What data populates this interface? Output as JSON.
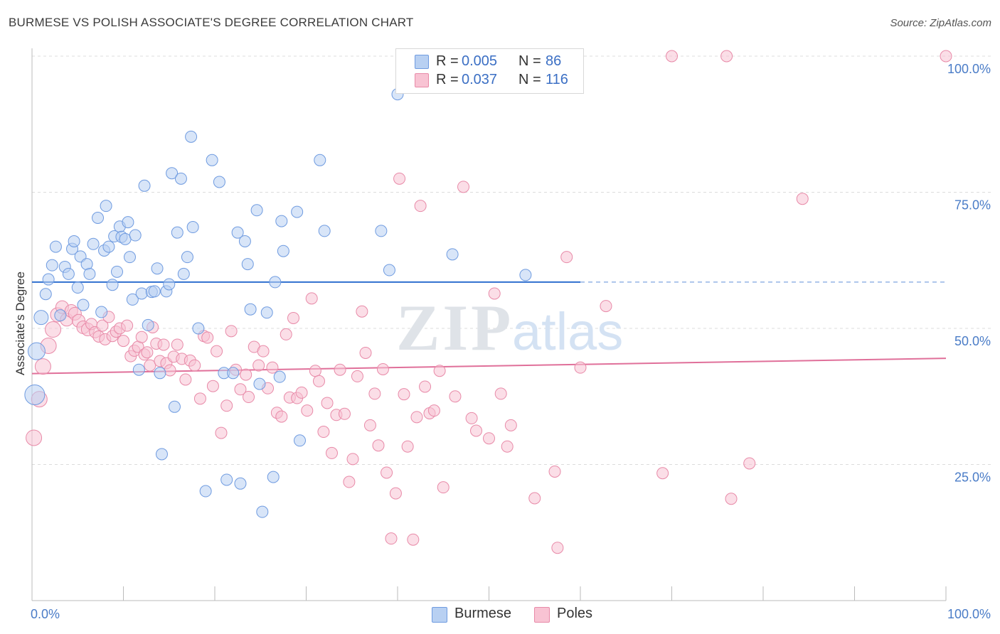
{
  "header": {
    "title": "BURMESE VS POLISH ASSOCIATE'S DEGREE CORRELATION CHART",
    "source": "Source: ZipAtlas.com"
  },
  "legend": {
    "series": [
      {
        "swatch_fill": "#b8d0f2",
        "swatch_stroke": "#6f9be0",
        "r_label": "R =",
        "r_value": "0.005",
        "n_label": "N =",
        "n_value": "86"
      },
      {
        "swatch_fill": "#f8c3d3",
        "swatch_stroke": "#e88aa8",
        "r_label": "R =",
        "r_value": "0.037",
        "n_label": "N =",
        "n_value": "116"
      }
    ]
  },
  "bottom_legend": [
    {
      "label": "Burmese",
      "color": "#b8d0f2"
    },
    {
      "label": "Poles",
      "color": "#f8c3d3"
    }
  ],
  "watermark": {
    "zip": "ZIP",
    "atlas": "atlas"
  },
  "chart_data": {
    "type": "scatter",
    "title": "BURMESE VS POLISH ASSOCIATE'S DEGREE CORRELATION CHART",
    "xlabel": "",
    "ylabel": "Associate's Degree",
    "xlim": [
      0,
      100
    ],
    "ylim": [
      0,
      100
    ],
    "x_tick_labels": [
      {
        "value": 0,
        "label": "0.0%"
      },
      {
        "value": 100,
        "label": "100.0%"
      }
    ],
    "y_tick_labels": [
      {
        "value": 25,
        "label": "25.0%"
      },
      {
        "value": 50,
        "label": "50.0%"
      },
      {
        "value": 75,
        "label": "75.0%"
      },
      {
        "value": 100,
        "label": "100.0%"
      }
    ],
    "grid": "horizontal dashed",
    "legend_position": "top-center",
    "series": [
      {
        "name": "Burmese",
        "color": "#6f9be0",
        "fill": "#b8d0f2",
        "trend": {
          "x": [
            0,
            60
          ],
          "y": [
            58.5,
            58.5
          ],
          "dashed_extension_to_x": 100
        },
        "points": [
          [
            0.3,
            37.8,
            14
          ],
          [
            0.5,
            45.8,
            12
          ],
          [
            1.0,
            52.0,
            10
          ],
          [
            1.5,
            56.3,
            8
          ],
          [
            1.8,
            59.0,
            8
          ],
          [
            2.2,
            61.6,
            8
          ],
          [
            2.6,
            65.0,
            8
          ],
          [
            3.1,
            52.4,
            8
          ],
          [
            3.6,
            61.3,
            8
          ],
          [
            4.0,
            60.0,
            8
          ],
          [
            4.4,
            64.6,
            8
          ],
          [
            4.6,
            66.0,
            8
          ],
          [
            5.0,
            57.5,
            8
          ],
          [
            5.3,
            63.2,
            8
          ],
          [
            5.6,
            54.3,
            8
          ],
          [
            6.0,
            61.8,
            8
          ],
          [
            6.3,
            60.0,
            8
          ],
          [
            6.7,
            65.5,
            8
          ],
          [
            7.2,
            70.3,
            8
          ],
          [
            7.6,
            53.0,
            8
          ],
          [
            7.9,
            64.3,
            8
          ],
          [
            8.1,
            72.5,
            8
          ],
          [
            8.4,
            65.0,
            8
          ],
          [
            8.8,
            58.0,
            8
          ],
          [
            9.0,
            66.9,
            8
          ],
          [
            9.3,
            60.4,
            8
          ],
          [
            9.6,
            68.7,
            8
          ],
          [
            9.8,
            66.8,
            8
          ],
          [
            10.2,
            66.4,
            8
          ],
          [
            10.5,
            69.5,
            8
          ],
          [
            10.7,
            63.1,
            8
          ],
          [
            11.0,
            55.3,
            8
          ],
          [
            11.3,
            67.1,
            8
          ],
          [
            11.7,
            42.4,
            8
          ],
          [
            12.0,
            56.4,
            8
          ],
          [
            12.3,
            76.2,
            8
          ],
          [
            12.7,
            50.6,
            8
          ],
          [
            13.1,
            56.7,
            8
          ],
          [
            13.4,
            56.8,
            8
          ],
          [
            13.7,
            61.0,
            8
          ],
          [
            14.0,
            41.8,
            8
          ],
          [
            14.2,
            26.9,
            8
          ],
          [
            14.7,
            56.8,
            8
          ],
          [
            15.0,
            58.1,
            8
          ],
          [
            15.3,
            78.5,
            8
          ],
          [
            15.6,
            35.6,
            8
          ],
          [
            15.9,
            67.6,
            8
          ],
          [
            16.3,
            77.5,
            8
          ],
          [
            16.6,
            60.0,
            8
          ],
          [
            17.0,
            63.1,
            8
          ],
          [
            17.4,
            85.2,
            8
          ],
          [
            17.6,
            68.6,
            8
          ],
          [
            18.2,
            50.0,
            8
          ],
          [
            19.0,
            20.1,
            8
          ],
          [
            19.7,
            80.9,
            8
          ],
          [
            20.5,
            76.9,
            8
          ],
          [
            21.0,
            41.8,
            8
          ],
          [
            21.3,
            22.2,
            8
          ],
          [
            22.0,
            41.8,
            8
          ],
          [
            22.5,
            67.6,
            8
          ],
          [
            22.8,
            21.5,
            8
          ],
          [
            23.3,
            66.0,
            8
          ],
          [
            23.6,
            61.8,
            8
          ],
          [
            23.9,
            53.5,
            8
          ],
          [
            24.6,
            71.7,
            8
          ],
          [
            24.9,
            39.8,
            8
          ],
          [
            25.2,
            16.3,
            8
          ],
          [
            25.7,
            52.9,
            8
          ],
          [
            26.4,
            22.7,
            8
          ],
          [
            26.6,
            58.5,
            8
          ],
          [
            27.1,
            41.1,
            8
          ],
          [
            27.3,
            69.7,
            8
          ],
          [
            27.5,
            64.2,
            8
          ],
          [
            29.0,
            71.4,
            8
          ],
          [
            29.3,
            29.4,
            8
          ],
          [
            31.5,
            80.9,
            8
          ],
          [
            32.0,
            67.9,
            8
          ],
          [
            38.2,
            67.9,
            8
          ],
          [
            39.1,
            60.7,
            8
          ],
          [
            40.0,
            93.0,
            8
          ],
          [
            46.0,
            63.6,
            8
          ],
          [
            54.0,
            59.8,
            8
          ]
        ]
      },
      {
        "name": "Poles",
        "color": "#e88aa8",
        "fill": "#f8c3d3",
        "trend": {
          "x": [
            0,
            100
          ],
          "y": [
            41.7,
            44.5
          ]
        },
        "points": [
          [
            0.2,
            29.9,
            11
          ],
          [
            0.8,
            37.0,
            11
          ],
          [
            1.2,
            43.0,
            11
          ],
          [
            1.8,
            46.8,
            11
          ],
          [
            2.3,
            49.8,
            11
          ],
          [
            2.8,
            52.5,
            10
          ],
          [
            3.3,
            53.9,
            9
          ],
          [
            3.8,
            51.6,
            9
          ],
          [
            4.3,
            53.2,
            9
          ],
          [
            4.7,
            52.7,
            9
          ],
          [
            5.1,
            51.4,
            9
          ],
          [
            5.6,
            50.2,
            9
          ],
          [
            6.1,
            49.8,
            9
          ],
          [
            6.5,
            50.8,
            8
          ],
          [
            6.9,
            49.3,
            8
          ],
          [
            7.3,
            48.5,
            8
          ],
          [
            7.7,
            50.5,
            8
          ],
          [
            8.0,
            48.0,
            8
          ],
          [
            8.4,
            52.1,
            8
          ],
          [
            8.8,
            48.6,
            8
          ],
          [
            9.2,
            49.4,
            8
          ],
          [
            9.6,
            50.0,
            8
          ],
          [
            10.0,
            47.7,
            8
          ],
          [
            10.4,
            50.5,
            8
          ],
          [
            10.8,
            44.9,
            8
          ],
          [
            11.2,
            45.9,
            8
          ],
          [
            11.6,
            46.6,
            8
          ],
          [
            12.0,
            48.4,
            8
          ],
          [
            12.3,
            45.2,
            8
          ],
          [
            12.6,
            45.6,
            8
          ],
          [
            12.9,
            43.2,
            8
          ],
          [
            13.2,
            50.2,
            8
          ],
          [
            13.6,
            47.2,
            8
          ],
          [
            14.0,
            44.0,
            8
          ],
          [
            14.4,
            47.0,
            8
          ],
          [
            14.7,
            43.6,
            8
          ],
          [
            15.1,
            42.3,
            8
          ],
          [
            15.5,
            44.8,
            8
          ],
          [
            15.9,
            47.0,
            8
          ],
          [
            16.4,
            44.4,
            8
          ],
          [
            16.8,
            40.6,
            8
          ],
          [
            17.3,
            44.1,
            8
          ],
          [
            17.8,
            43.2,
            8
          ],
          [
            18.4,
            37.1,
            8
          ],
          [
            18.8,
            48.6,
            8
          ],
          [
            19.2,
            48.3,
            8
          ],
          [
            19.8,
            39.4,
            8
          ],
          [
            20.2,
            45.8,
            8
          ],
          [
            20.7,
            30.8,
            8
          ],
          [
            21.3,
            35.8,
            8
          ],
          [
            21.8,
            49.5,
            8
          ],
          [
            22.3,
            42.4,
            8
          ],
          [
            22.8,
            38.8,
            8
          ],
          [
            23.4,
            41.5,
            8
          ],
          [
            23.7,
            37.4,
            8
          ],
          [
            24.3,
            46.6,
            8
          ],
          [
            24.8,
            43.2,
            8
          ],
          [
            25.3,
            45.8,
            8
          ],
          [
            25.8,
            39.0,
            8
          ],
          [
            26.3,
            42.8,
            8
          ],
          [
            26.8,
            34.5,
            8
          ],
          [
            27.3,
            33.8,
            8
          ],
          [
            27.8,
            48.9,
            8
          ],
          [
            28.2,
            37.3,
            8
          ],
          [
            28.6,
            51.9,
            8
          ],
          [
            29.0,
            37.2,
            8
          ],
          [
            29.5,
            38.2,
            8
          ],
          [
            30.1,
            34.9,
            8
          ],
          [
            30.6,
            55.5,
            8
          ],
          [
            31.0,
            42.2,
            8
          ],
          [
            31.4,
            40.3,
            8
          ],
          [
            31.9,
            31.0,
            8
          ],
          [
            32.3,
            36.3,
            8
          ],
          [
            32.8,
            27.1,
            8
          ],
          [
            33.3,
            34.1,
            8
          ],
          [
            33.7,
            42.4,
            8
          ],
          [
            34.2,
            34.3,
            8
          ],
          [
            34.7,
            21.8,
            8
          ],
          [
            35.1,
            26.0,
            8
          ],
          [
            35.6,
            41.2,
            8
          ],
          [
            36.1,
            53.1,
            8
          ],
          [
            36.5,
            45.5,
            8
          ],
          [
            37.0,
            32.2,
            8
          ],
          [
            37.5,
            38.0,
            8
          ],
          [
            37.9,
            28.5,
            8
          ],
          [
            38.4,
            42.5,
            8
          ],
          [
            38.8,
            23.5,
            8
          ],
          [
            39.3,
            11.4,
            8
          ],
          [
            39.8,
            19.7,
            8
          ],
          [
            40.2,
            77.5,
            8
          ],
          [
            40.7,
            37.9,
            8
          ],
          [
            41.1,
            28.3,
            8
          ],
          [
            41.7,
            11.2,
            8
          ],
          [
            42.1,
            33.7,
            8
          ],
          [
            42.5,
            72.5,
            8
          ],
          [
            43.0,
            39.3,
            8
          ],
          [
            43.5,
            34.4,
            8
          ],
          [
            44.0,
            34.9,
            8
          ],
          [
            44.6,
            42.2,
            8
          ],
          [
            45.0,
            20.8,
            8
          ],
          [
            46.3,
            37.5,
            8
          ],
          [
            47.2,
            76.0,
            8
          ],
          [
            48.1,
            33.5,
            8
          ],
          [
            48.6,
            31.2,
            8
          ],
          [
            50.0,
            29.8,
            8
          ],
          [
            50.6,
            56.4,
            8
          ],
          [
            51.3,
            38.0,
            8
          ],
          [
            52.0,
            28.3,
            8
          ],
          [
            52.4,
            32.2,
            8
          ],
          [
            55.0,
            18.8,
            8
          ],
          [
            57.2,
            23.7,
            8
          ],
          [
            57.5,
            9.7,
            8
          ],
          [
            58.5,
            63.1,
            8
          ],
          [
            60.0,
            42.8,
            8
          ]
        ]
      }
    ],
    "extra_points_high_x": {
      "series": "Poles",
      "points": [
        [
          62.8,
          54.1
        ],
        [
          69.0,
          23.4
        ],
        [
          70.0,
          100
        ],
        [
          76.0,
          100
        ],
        [
          76.5,
          18.7
        ],
        [
          78.5,
          25.2
        ],
        [
          84.3,
          73.8
        ],
        [
          100,
          100
        ]
      ]
    }
  }
}
